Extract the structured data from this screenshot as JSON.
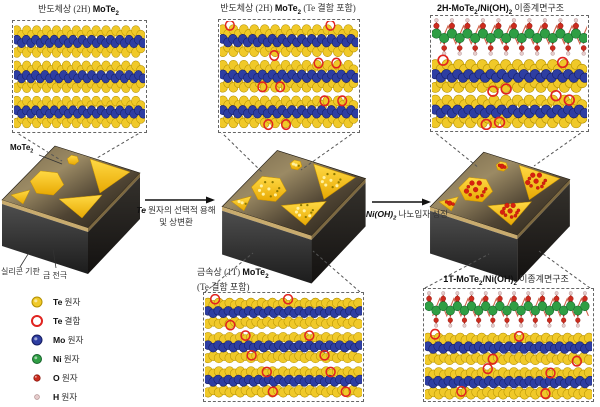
{
  "panels": {
    "top_left": {
      "title_pre": "반도체상 (2H) ",
      "formula": "MoTe",
      "sub": "2"
    },
    "top_mid": {
      "title_pre": "반도체상 (2H) ",
      "formula": "MoTe",
      "sub": "2",
      "title_post": " (Te 결함 포함)"
    },
    "top_right": {
      "formula1": "2H-MoTe",
      "sub1": "2",
      "formula2": "/Ni(OH)",
      "sub2": "2",
      "title_post": " 이종계면구조"
    },
    "bottom_mid": {
      "title_pre": "금속상 (1T) ",
      "formula": "MoTe",
      "sub": "2",
      "line2": "(Te 결함 포함)"
    },
    "bottom_right": {
      "formula1": "1T-MoTe",
      "sub1": "2",
      "formula2": "/Ni(OH)",
      "sub2": "2",
      "title_post": " 이종계면구조"
    }
  },
  "blocks": {
    "flake_formula": "MoTe",
    "flake_sub": "2",
    "substrate_label": "실리콘 기판",
    "electrode_label": "금 전극"
  },
  "arrows": {
    "arrow1": {
      "formula": "Te",
      "line1_rest": " 원자의 선택적 용해",
      "line2": "및 상변환"
    },
    "arrow2": {
      "formula": "Ni(OH)",
      "sub": "2",
      "rest": " 나노입자 성장"
    }
  },
  "legend": {
    "items": [
      {
        "symbol": "Te",
        "label": " 원자",
        "type": "te"
      },
      {
        "symbol": "Te",
        "label": " 결함",
        "type": "vacancy"
      },
      {
        "symbol": "Mo",
        "label": " 원자",
        "type": "mo"
      },
      {
        "symbol": "Ni",
        "label": " 원자",
        "type": "ni"
      },
      {
        "symbol": "O",
        "label": " 원자",
        "type": "o"
      },
      {
        "symbol": "H",
        "label": " 원자",
        "type": "h"
      }
    ]
  },
  "colors": {
    "te_atom": "#f0c929",
    "te_vacancy": "#e02420",
    "mo_atom": "#2e3ea2",
    "ni_atom": "#2f9e44",
    "o_atom": "#cc2b1e",
    "h_atom": "#e6cccc",
    "flake_gold": "#f6c408",
    "nanoparticle": "#d8200f"
  },
  "structures": {
    "top_left": {
      "phase": "2H",
      "mote2_layers": 3,
      "ni_oh2_layer": false,
      "te_defects": false
    },
    "top_mid": {
      "phase": "2H",
      "mote2_layers": 3,
      "ni_oh2_layer": false,
      "te_defects": true
    },
    "top_right": {
      "phase": "2H",
      "mote2_layers": 2,
      "ni_oh2_layer": true,
      "te_defects": true
    },
    "bottom_mid": {
      "phase": "1T",
      "mote2_layers": 3,
      "ni_oh2_layer": false,
      "te_defects": true
    },
    "bottom_right": {
      "phase": "1T",
      "mote2_layers": 2,
      "ni_oh2_layer": true,
      "te_defects": true
    }
  }
}
